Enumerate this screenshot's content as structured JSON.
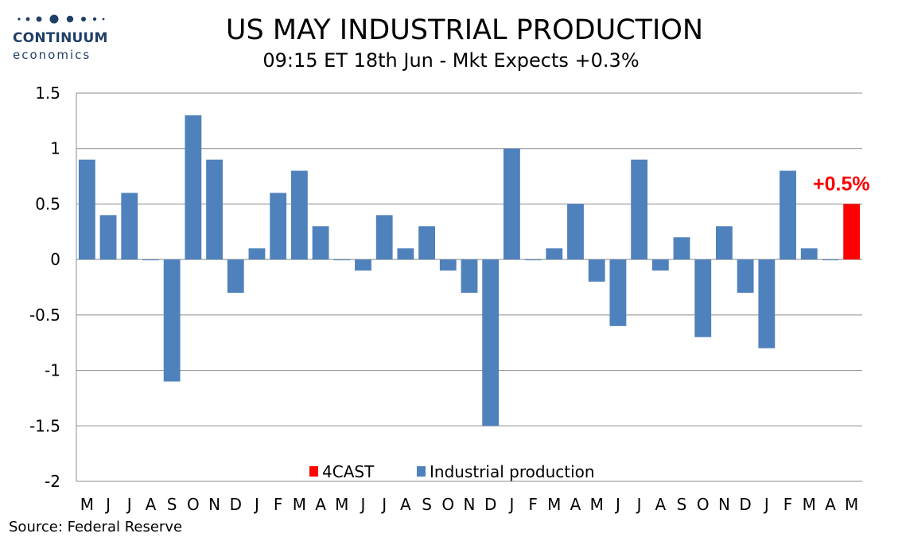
{
  "logo": {
    "name": "CONTINUUM",
    "sub": "economics"
  },
  "title": "US MAY INDUSTRIAL PRODUCTION",
  "subtitle": "09:15 ET 18th Jun - Mkt Expects +0.3%",
  "source": "Source: Federal Reserve",
  "colors": {
    "series": "#4f81bd",
    "forecast": "#ff0000",
    "logo": "#1f3f66"
  },
  "chart_data": {
    "type": "bar",
    "ylim": [
      -2,
      1.5
    ],
    "yticks": [
      1.5,
      1,
      0.5,
      0,
      -0.5,
      -1,
      -1.5,
      -2
    ],
    "ytick_labels": [
      "1.5",
      "1",
      "0.5",
      "0",
      "-0.5",
      "-1",
      "-1.5",
      "-2"
    ],
    "grid": true,
    "legend_placement": "bottom",
    "categories": [
      "M",
      "J",
      "J",
      "A",
      "S",
      "O",
      "N",
      "D",
      "J",
      "F",
      "M",
      "A",
      "M",
      "J",
      "J",
      "A",
      "S",
      "O",
      "N",
      "D",
      "J",
      "F",
      "M",
      "A",
      "M",
      "J",
      "J",
      "A",
      "S",
      "O",
      "N",
      "D",
      "J",
      "F",
      "M",
      "A",
      "M"
    ],
    "series": [
      {
        "name": "Industrial production",
        "values": [
          0.9,
          0.4,
          0.6,
          0,
          -1.1,
          1.3,
          0.9,
          -0.3,
          0.1,
          0.6,
          0.8,
          0.3,
          0,
          -0.1,
          0.4,
          0.1,
          0.3,
          -0.1,
          -0.3,
          -1.5,
          1.0,
          0,
          0.1,
          0.5,
          -0.2,
          -0.6,
          0.9,
          -0.1,
          0.2,
          -0.7,
          0.3,
          -0.3,
          -0.8,
          0.8,
          0.1,
          0,
          null
        ]
      },
      {
        "name": "4CAST",
        "values": [
          null,
          null,
          null,
          null,
          null,
          null,
          null,
          null,
          null,
          null,
          null,
          null,
          null,
          null,
          null,
          null,
          null,
          null,
          null,
          null,
          null,
          null,
          null,
          null,
          null,
          null,
          null,
          null,
          null,
          null,
          null,
          null,
          null,
          null,
          null,
          null,
          0.5
        ]
      }
    ],
    "annotation": {
      "text": "+0.5%",
      "category_index": 36,
      "value": 0.5
    }
  }
}
